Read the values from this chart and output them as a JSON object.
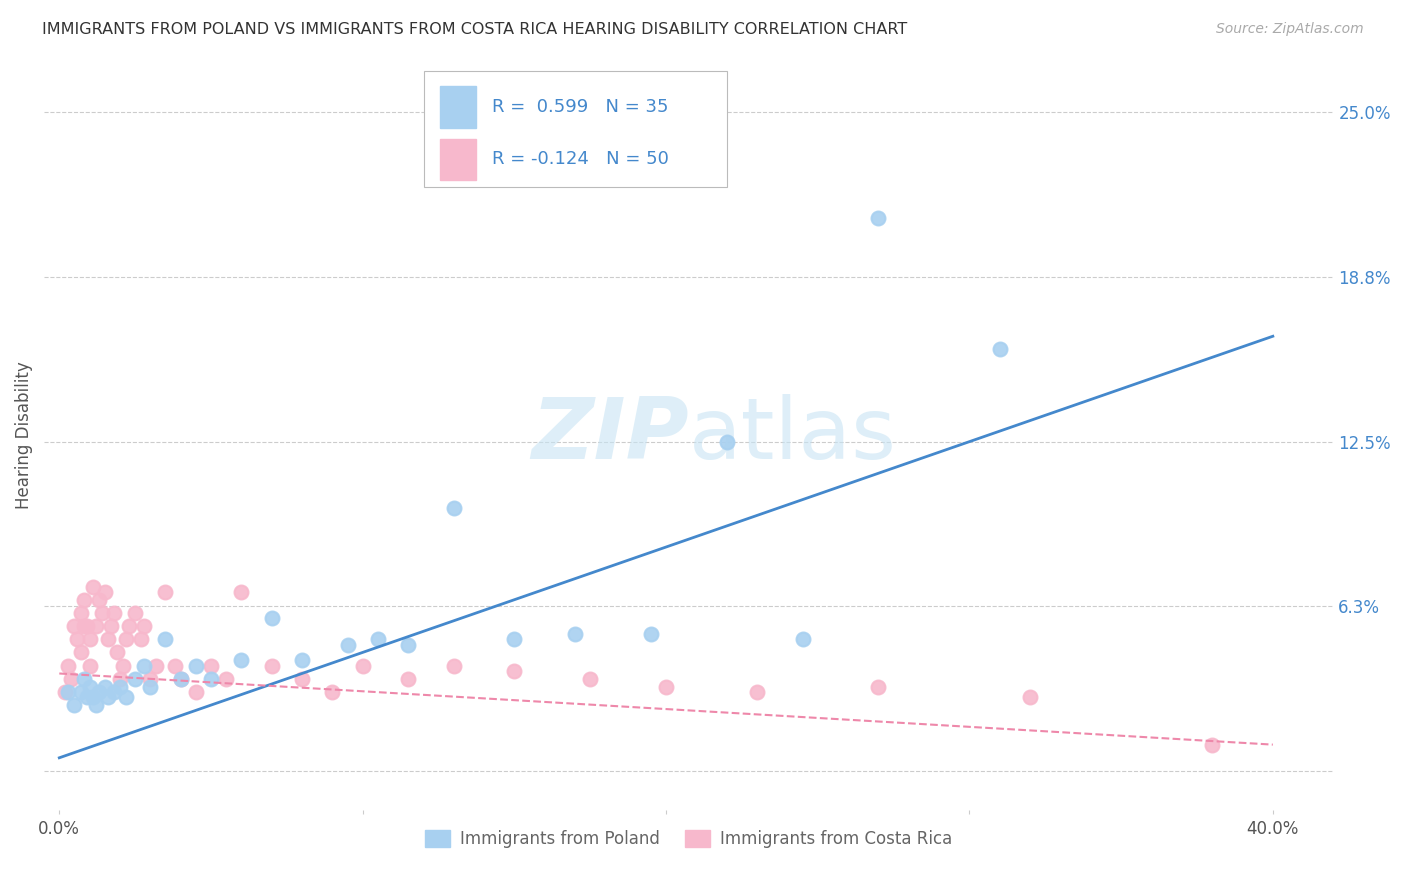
{
  "title": "IMMIGRANTS FROM POLAND VS IMMIGRANTS FROM COSTA RICA HEARING DISABILITY CORRELATION CHART",
  "source": "Source: ZipAtlas.com",
  "ylabel": "Hearing Disability",
  "yticks": [
    0.0,
    0.0625,
    0.125,
    0.1875,
    0.25
  ],
  "ytick_labels": [
    "",
    "6.3%",
    "12.5%",
    "18.8%",
    "25.0%"
  ],
  "xticks": [
    0.0,
    0.1,
    0.2,
    0.3,
    0.4
  ],
  "xtick_labels": [
    "0.0%",
    "",
    "",
    "",
    "40.0%"
  ],
  "xlim": [
    -0.005,
    0.42
  ],
  "ylim": [
    -0.015,
    0.27
  ],
  "poland_R": 0.599,
  "poland_N": 35,
  "costarica_R": -0.124,
  "costarica_N": 50,
  "poland_color": "#A8D0F0",
  "costarica_color": "#F7B8CC",
  "poland_line_color": "#4488CC",
  "costarica_line_color": "#EE88AA",
  "background_color": "#FFFFFF",
  "watermark_color": "#C8E4F4",
  "poland_x": [
    0.003,
    0.005,
    0.007,
    0.008,
    0.009,
    0.01,
    0.011,
    0.012,
    0.013,
    0.015,
    0.016,
    0.018,
    0.02,
    0.022,
    0.025,
    0.028,
    0.03,
    0.035,
    0.04,
    0.045,
    0.05,
    0.06,
    0.07,
    0.08,
    0.095,
    0.105,
    0.115,
    0.13,
    0.15,
    0.17,
    0.195,
    0.22,
    0.245,
    0.27,
    0.31
  ],
  "poland_y": [
    0.03,
    0.025,
    0.03,
    0.035,
    0.028,
    0.032,
    0.028,
    0.025,
    0.03,
    0.032,
    0.028,
    0.03,
    0.032,
    0.028,
    0.035,
    0.04,
    0.032,
    0.05,
    0.035,
    0.04,
    0.035,
    0.042,
    0.058,
    0.042,
    0.048,
    0.05,
    0.048,
    0.1,
    0.05,
    0.052,
    0.052,
    0.125,
    0.05,
    0.21,
    0.16
  ],
  "costarica_x": [
    0.002,
    0.003,
    0.004,
    0.005,
    0.006,
    0.007,
    0.007,
    0.008,
    0.008,
    0.009,
    0.01,
    0.01,
    0.011,
    0.012,
    0.013,
    0.014,
    0.015,
    0.016,
    0.017,
    0.018,
    0.019,
    0.02,
    0.021,
    0.022,
    0.023,
    0.025,
    0.027,
    0.028,
    0.03,
    0.032,
    0.035,
    0.038,
    0.04,
    0.045,
    0.05,
    0.055,
    0.06,
    0.07,
    0.08,
    0.09,
    0.1,
    0.115,
    0.13,
    0.15,
    0.175,
    0.2,
    0.23,
    0.27,
    0.32,
    0.38
  ],
  "costarica_y": [
    0.03,
    0.04,
    0.035,
    0.055,
    0.05,
    0.06,
    0.045,
    0.065,
    0.055,
    0.055,
    0.04,
    0.05,
    0.07,
    0.055,
    0.065,
    0.06,
    0.068,
    0.05,
    0.055,
    0.06,
    0.045,
    0.035,
    0.04,
    0.05,
    0.055,
    0.06,
    0.05,
    0.055,
    0.035,
    0.04,
    0.068,
    0.04,
    0.035,
    0.03,
    0.04,
    0.035,
    0.068,
    0.04,
    0.035,
    0.03,
    0.04,
    0.035,
    0.04,
    0.038,
    0.035,
    0.032,
    0.03,
    0.032,
    0.028,
    0.01
  ],
  "poland_line_x": [
    0.0,
    0.4
  ],
  "poland_line_y": [
    0.005,
    0.165
  ],
  "costarica_line_x": [
    0.0,
    0.4
  ],
  "costarica_line_y": [
    0.037,
    0.01
  ]
}
